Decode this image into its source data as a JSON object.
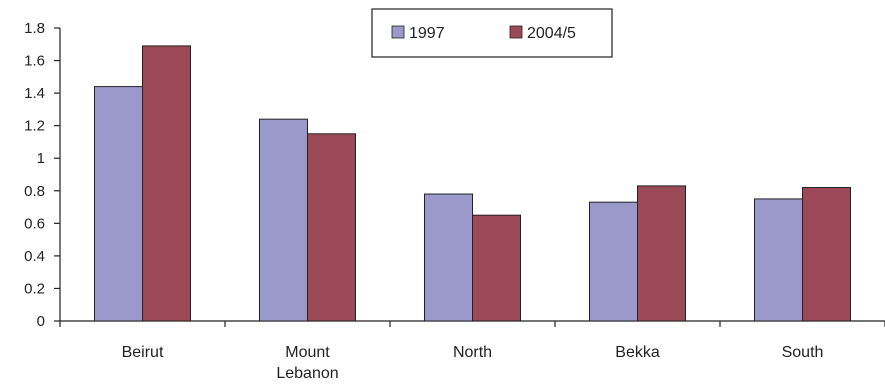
{
  "chart_data": {
    "type": "bar",
    "categories": [
      [
        "Beirut"
      ],
      [
        "Mount",
        "Lebanon"
      ],
      [
        "North"
      ],
      [
        "Bekka"
      ],
      [
        "South"
      ]
    ],
    "series": [
      {
        "name": "1997",
        "values": [
          1.44,
          1.24,
          0.78,
          0.73,
          0.75
        ],
        "color": "#9b99cc"
      },
      {
        "name": "2004/5",
        "values": [
          1.69,
          1.15,
          0.65,
          0.83,
          0.82
        ],
        "color": "#9c4a57"
      }
    ],
    "ylim": [
      0,
      1.8
    ],
    "yticks": [
      "0",
      "0.2",
      "0.4",
      "0.6",
      "0.8",
      "1",
      "1.2",
      "1.4",
      "1.6",
      "1.8"
    ],
    "grid": false,
    "legend_position": "top-center",
    "title": "",
    "xlabel": "",
    "ylabel": ""
  }
}
